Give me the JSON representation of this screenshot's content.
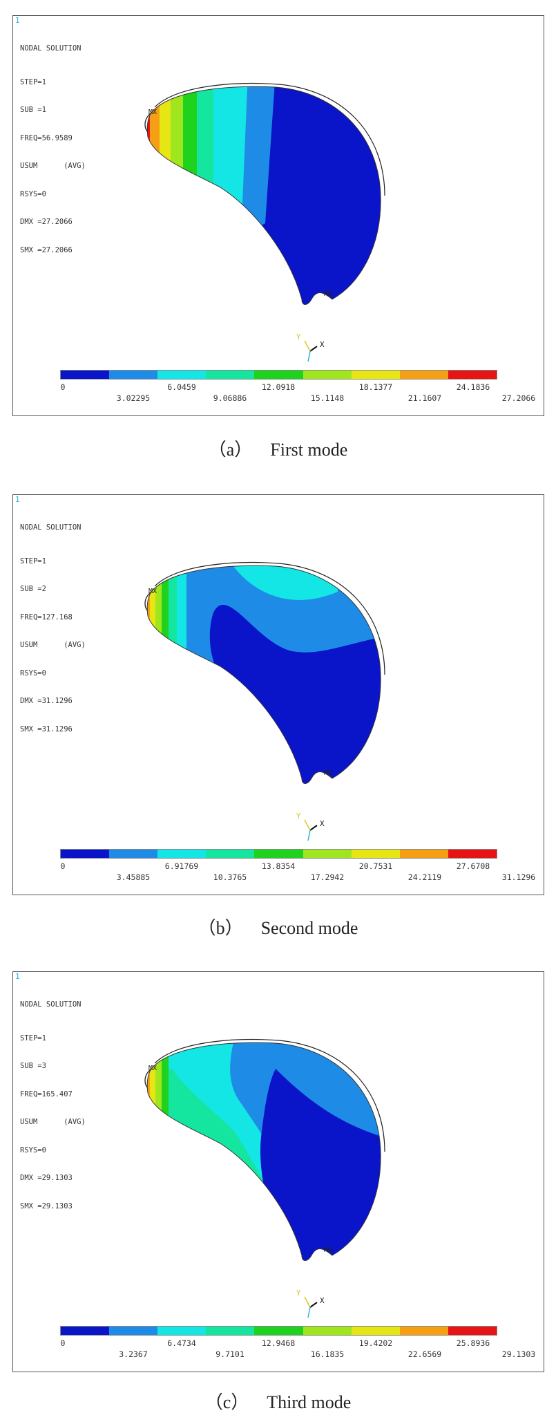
{
  "panels": [
    {
      "window_number": "1",
      "header": "NODAL SOLUTION",
      "lines": [
        "STEP=1",
        "SUB =1",
        "FREQ=56.9589",
        "USUM      (AVG)",
        "RSYS=0",
        "DMX =27.2066",
        "SMX =27.2066"
      ],
      "legend_top": [
        "0",
        "6.0459",
        "12.0918",
        "18.1377",
        "24.1836"
      ],
      "legend_bottom": [
        "3.02295",
        "9.06886",
        "15.1148",
        "21.1607",
        "27.2066"
      ],
      "caption_tag": "（a）",
      "caption_text": "First mode",
      "mx_label": "MX",
      "mn_label": "MN",
      "axis_y": "Y",
      "axis_x": "X"
    },
    {
      "window_number": "1",
      "header": "NODAL SOLUTION",
      "lines": [
        "STEP=1",
        "SUB =2",
        "FREQ=127.168",
        "USUM      (AVG)",
        "RSYS=0",
        "DMX =31.1296",
        "SMX =31.1296"
      ],
      "legend_top": [
        "0",
        "6.91769",
        "13.8354",
        "20.7531",
        "27.6708"
      ],
      "legend_bottom": [
        "3.45885",
        "10.3765",
        "17.2942",
        "24.2119",
        "31.1296"
      ],
      "caption_tag": "（b）",
      "caption_text": "Second mode",
      "mx_label": "MX",
      "mn_label": "MN",
      "axis_y": "Y",
      "axis_x": "X"
    },
    {
      "window_number": "1",
      "header": "NODAL SOLUTION",
      "lines": [
        "STEP=1",
        "SUB =3",
        "FREQ=165.407",
        "USUM      (AVG)",
        "RSYS=0",
        "DMX =29.1303",
        "SMX =29.1303"
      ],
      "legend_top": [
        "0",
        "6.4734",
        "12.9468",
        "19.4202",
        "25.8936"
      ],
      "legend_bottom": [
        "3.2367",
        "9.7101",
        "16.1835",
        "22.6569",
        "29.1303"
      ],
      "caption_tag": "（c）",
      "caption_text": "Third mode",
      "mx_label": "MX",
      "mn_label": "MN",
      "axis_y": "Y",
      "axis_x": "X"
    }
  ],
  "colormap": [
    "#0a14c8",
    "#1e8ce6",
    "#14e6e6",
    "#14e6a0",
    "#1ed21e",
    "#a0e61e",
    "#e6e614",
    "#f5a014",
    "#e61414"
  ]
}
